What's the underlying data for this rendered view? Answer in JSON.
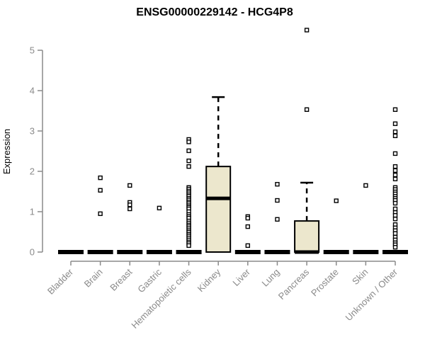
{
  "chart_data": {
    "type": "boxplot",
    "title": "ENSG00000229142 - HCG4P8",
    "ylabel": "Expression",
    "xlabel": "",
    "ylim": [
      0,
      5.6
    ],
    "yticks": [
      0,
      1,
      2,
      3,
      4,
      5
    ],
    "grid": false,
    "legend": null,
    "categories": [
      "Bladder",
      "Brain",
      "Breast",
      "Gastric",
      "Hematopoietic cells",
      "Kidney",
      "Liver",
      "Lung",
      "Pancreas",
      "Prostate",
      "Skin",
      "Unknown / Other"
    ],
    "boxes": [
      {
        "category": "Bladder",
        "q1": 0,
        "median": 0,
        "q3": 0,
        "whisker_low": 0,
        "whisker_high": 0,
        "outliers": []
      },
      {
        "category": "Brain",
        "q1": 0,
        "median": 0,
        "q3": 0,
        "whisker_low": 0,
        "whisker_high": 0,
        "outliers": [
          1.84,
          1.53,
          0.95
        ]
      },
      {
        "category": "Breast",
        "q1": 0,
        "median": 0,
        "q3": 0,
        "whisker_low": 0,
        "whisker_high": 0,
        "outliers": [
          1.65,
          1.23,
          1.17,
          1.07
        ]
      },
      {
        "category": "Gastric",
        "q1": 0,
        "median": 0,
        "q3": 0,
        "whisker_low": 0,
        "whisker_high": 0,
        "outliers": [
          1.09
        ]
      },
      {
        "category": "Hematopoietic cells",
        "q1": 0,
        "median": 0,
        "q3": 0,
        "whisker_low": 0,
        "whisker_high": 0,
        "outliers": [
          2.79,
          2.73,
          2.51,
          2.26,
          2.12,
          1.6,
          1.56,
          1.51,
          1.47,
          1.42,
          1.38,
          1.33,
          1.29,
          1.24,
          1.2,
          1.15,
          1.11,
          1.07,
          1.0,
          0.93,
          0.88,
          0.84,
          0.77,
          0.72,
          0.67,
          0.63,
          0.58,
          0.53,
          0.49,
          0.44,
          0.4,
          0.35,
          0.3,
          0.25,
          0.21,
          0.16
        ]
      },
      {
        "category": "Kidney",
        "q1": 0,
        "median": 1.33,
        "q3": 2.12,
        "whisker_low": 0,
        "whisker_high": 3.84,
        "outliers": []
      },
      {
        "category": "Liver",
        "q1": 0,
        "median": 0,
        "q3": 0,
        "whisker_low": 0,
        "whisker_high": 0,
        "outliers": [
          0.88,
          0.84,
          0.63,
          0.16
        ]
      },
      {
        "category": "Lung",
        "q1": 0,
        "median": 0,
        "q3": 0,
        "whisker_low": 0,
        "whisker_high": 0,
        "outliers": [
          1.68,
          1.28,
          0.81
        ]
      },
      {
        "category": "Pancreas",
        "q1": 0,
        "median": 0,
        "q3": 0.77,
        "whisker_low": 0,
        "whisker_high": 1.72,
        "outliers": [
          5.5,
          3.53
        ]
      },
      {
        "category": "Prostate",
        "q1": 0,
        "median": 0,
        "q3": 0,
        "whisker_low": 0,
        "whisker_high": 0,
        "outliers": [
          1.27
        ]
      },
      {
        "category": "Skin",
        "q1": 0,
        "median": 0,
        "q3": 0,
        "whisker_low": 0,
        "whisker_high": 0,
        "outliers": [
          1.65
        ]
      },
      {
        "category": "Unknown / Other",
        "q1": 0,
        "median": 0,
        "q3": 0,
        "whisker_low": 0,
        "whisker_high": 0,
        "outliers": [
          3.53,
          3.18,
          2.98,
          2.88,
          2.44,
          2.12,
          2.02,
          1.91,
          1.81,
          1.6,
          1.55,
          1.49,
          1.44,
          1.38,
          1.33,
          1.28,
          1.21,
          1.07,
          0.98,
          0.91,
          0.82,
          0.68,
          0.6,
          0.53,
          0.46,
          0.37,
          0.3,
          0.23,
          0.18,
          0.12
        ]
      }
    ],
    "colors": {
      "box_fill": "#ece7cd",
      "box_stroke": "#000000",
      "median": "#000000",
      "outlier_stroke": "#000000",
      "outlier_fill": "#ffffff",
      "axis": "#8a8a8a",
      "labels": "#8a8a8a",
      "title": "#000000",
      "background": "#ffffff"
    }
  }
}
